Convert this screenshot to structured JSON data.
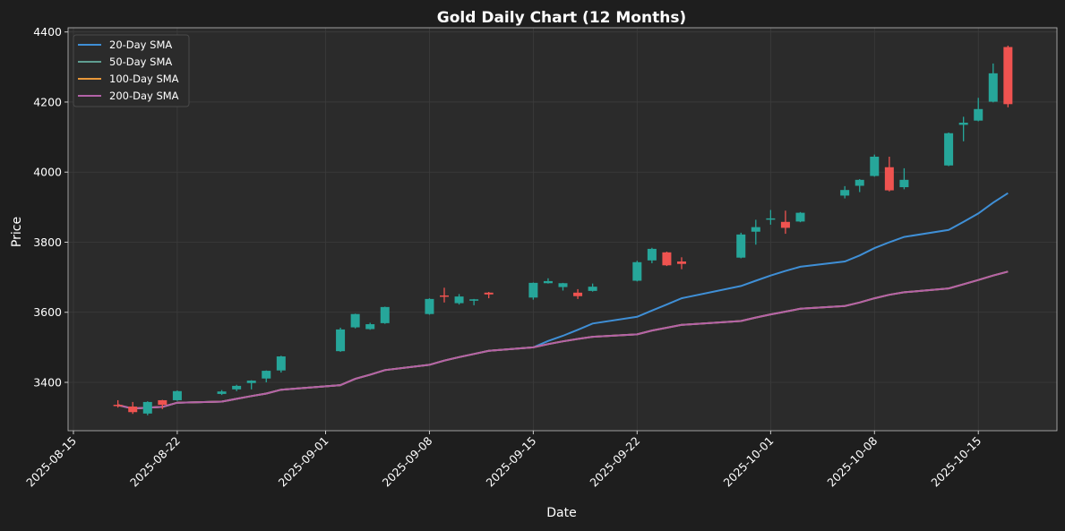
{
  "chart_data": {
    "type": "candlestick",
    "title": "Gold Daily Chart (12 Months)",
    "xlabel": "Date",
    "ylabel": "Price",
    "ylim": [
      3262,
      4412
    ],
    "xlim": [
      "2025-08-14",
      "2025-10-21"
    ],
    "yticks": [
      3400,
      3600,
      3800,
      4000,
      4200,
      4400
    ],
    "xticks": [
      "2025-08-15",
      "2025-08-22",
      "2025-09-01",
      "2025-09-08",
      "2025-09-15",
      "2025-09-22",
      "2025-10-01",
      "2025-10-08",
      "2025-10-15"
    ],
    "grid": true,
    "legend_position": "top-left",
    "colors": {
      "up": "#26a69a",
      "down": "#ef5350",
      "sma20": "#3f8fd6",
      "sma50": "#5f9e92",
      "sma100": "#e8983a",
      "sma200": "#b362a8"
    },
    "candle_fields": [
      "date",
      "open",
      "high",
      "low",
      "close"
    ],
    "candles": [
      [
        "2025-08-18",
        3336,
        3349,
        3328,
        3333
      ],
      [
        "2025-08-19",
        3331,
        3344,
        3310,
        3315
      ],
      [
        "2025-08-20",
        3311,
        3346,
        3306,
        3344
      ],
      [
        "2025-08-21",
        3349,
        3350,
        3324,
        3336
      ],
      [
        "2025-08-22",
        3349,
        3377,
        3347,
        3375
      ],
      [
        "2025-08-25",
        3367,
        3378,
        3364,
        3374
      ],
      [
        "2025-08-26",
        3380,
        3393,
        3375,
        3390
      ],
      [
        "2025-08-27",
        3398,
        3406,
        3380,
        3405
      ],
      [
        "2025-08-28",
        3411,
        3434,
        3400,
        3433
      ],
      [
        "2025-08-29",
        3434,
        3476,
        3428,
        3474
      ],
      [
        "2025-09-02",
        3489,
        3556,
        3487,
        3551
      ],
      [
        "2025-09-03",
        3557,
        3596,
        3554,
        3595
      ],
      [
        "2025-09-04",
        3552,
        3570,
        3550,
        3566
      ],
      [
        "2025-09-05",
        3569,
        3616,
        3567,
        3615
      ],
      [
        "2025-09-08",
        3595,
        3640,
        3593,
        3638
      ],
      [
        "2025-09-09",
        3648,
        3670,
        3628,
        3647
      ],
      [
        "2025-09-10",
        3626,
        3652,
        3622,
        3645
      ],
      [
        "2025-09-11",
        3633,
        3638,
        3620,
        3637
      ],
      [
        "2025-09-12",
        3656,
        3658,
        3640,
        3651
      ],
      [
        "2025-09-15",
        3642,
        3685,
        3636,
        3684
      ],
      [
        "2025-09-16",
        3683,
        3697,
        3682,
        3689
      ],
      [
        "2025-09-17",
        3672,
        3684,
        3662,
        3683
      ],
      [
        "2025-09-18",
        3656,
        3666,
        3638,
        3646
      ],
      [
        "2025-09-19",
        3661,
        3682,
        3659,
        3673
      ],
      [
        "2025-09-22",
        3690,
        3747,
        3688,
        3743
      ],
      [
        "2025-09-23",
        3748,
        3784,
        3740,
        3781
      ],
      [
        "2025-09-24",
        3771,
        3773,
        3732,
        3734
      ],
      [
        "2025-09-25",
        3745,
        3757,
        3723,
        3738
      ],
      [
        "2025-09-29",
        3756,
        3827,
        3754,
        3822
      ],
      [
        "2025-09-30",
        3830,
        3864,
        3793,
        3843
      ],
      [
        "2025-10-01",
        3866,
        3892,
        3850,
        3868
      ],
      [
        "2025-10-02",
        3858,
        3890,
        3824,
        3841
      ],
      [
        "2025-10-03",
        3859,
        3886,
        3857,
        3884
      ],
      [
        "2025-10-06",
        3933,
        3960,
        3925,
        3949
      ],
      [
        "2025-10-07",
        3961,
        3980,
        3943,
        3978
      ],
      [
        "2025-10-08",
        3989,
        4050,
        3987,
        4044
      ],
      [
        "2025-10-09",
        4014,
        4044,
        3945,
        3948
      ],
      [
        "2025-10-10",
        3957,
        4011,
        3951,
        3978
      ],
      [
        "2025-10-13",
        4019,
        4113,
        4017,
        4111
      ],
      [
        "2025-10-14",
        4135,
        4158,
        4088,
        4141
      ],
      [
        "2025-10-15",
        4147,
        4212,
        4145,
        4180
      ],
      [
        "2025-10-16",
        4201,
        4310,
        4199,
        4282
      ],
      [
        "2025-10-17",
        4357,
        4361,
        4185,
        4194
      ]
    ],
    "series": [
      {
        "name": "20-Day SMA",
        "key": "sma20",
        "values": [
          3335,
          3325,
          3328,
          3330,
          3342,
          3345,
          3353,
          3361,
          3368,
          3379,
          3392,
          3410,
          3422,
          3435,
          3450,
          3462,
          3472,
          3481,
          3490,
          3500,
          3518,
          3533,
          3550,
          3568,
          3587,
          3605,
          3622,
          3640,
          3675,
          3690,
          3705,
          3718,
          3730,
          3745,
          3762,
          3783,
          3800,
          3815,
          3835,
          3858,
          3882,
          3913,
          3940
        ]
      },
      {
        "name": "50-Day SMA",
        "key": "sma50",
        "values": [
          3335,
          3325,
          3328,
          3330,
          3342,
          3345,
          3353,
          3361,
          3368,
          3379,
          3392,
          3410,
          3422,
          3435,
          3450,
          3462,
          3472,
          3481,
          3490,
          3500,
          3509,
          3517,
          3524,
          3530,
          3537,
          3548,
          3556,
          3564,
          3575,
          3585,
          3594,
          3602,
          3610,
          3618,
          3628,
          3640,
          3650,
          3657,
          3668,
          3680,
          3692,
          3705,
          3716
        ]
      },
      {
        "name": "100-Day SMA",
        "key": "sma100",
        "values": [
          3335,
          3325,
          3328,
          3330,
          3342,
          3345,
          3353,
          3361,
          3368,
          3379,
          3392,
          3410,
          3422,
          3435,
          3450,
          3462,
          3472,
          3481,
          3490,
          3500,
          3509,
          3517,
          3524,
          3530,
          3537,
          3548,
          3556,
          3564,
          3575,
          3585,
          3594,
          3602,
          3610,
          3618,
          3628,
          3640,
          3650,
          3657,
          3668,
          3680,
          3692,
          3705,
          3716
        ]
      },
      {
        "name": "200-Day SMA",
        "key": "sma200",
        "values": [
          3335,
          3325,
          3328,
          3330,
          3342,
          3345,
          3353,
          3361,
          3368,
          3379,
          3392,
          3410,
          3422,
          3435,
          3450,
          3462,
          3472,
          3481,
          3490,
          3500,
          3509,
          3517,
          3524,
          3530,
          3537,
          3548,
          3556,
          3564,
          3575,
          3585,
          3594,
          3602,
          3610,
          3618,
          3628,
          3640,
          3650,
          3657,
          3668,
          3680,
          3692,
          3705,
          3716
        ]
      }
    ]
  }
}
